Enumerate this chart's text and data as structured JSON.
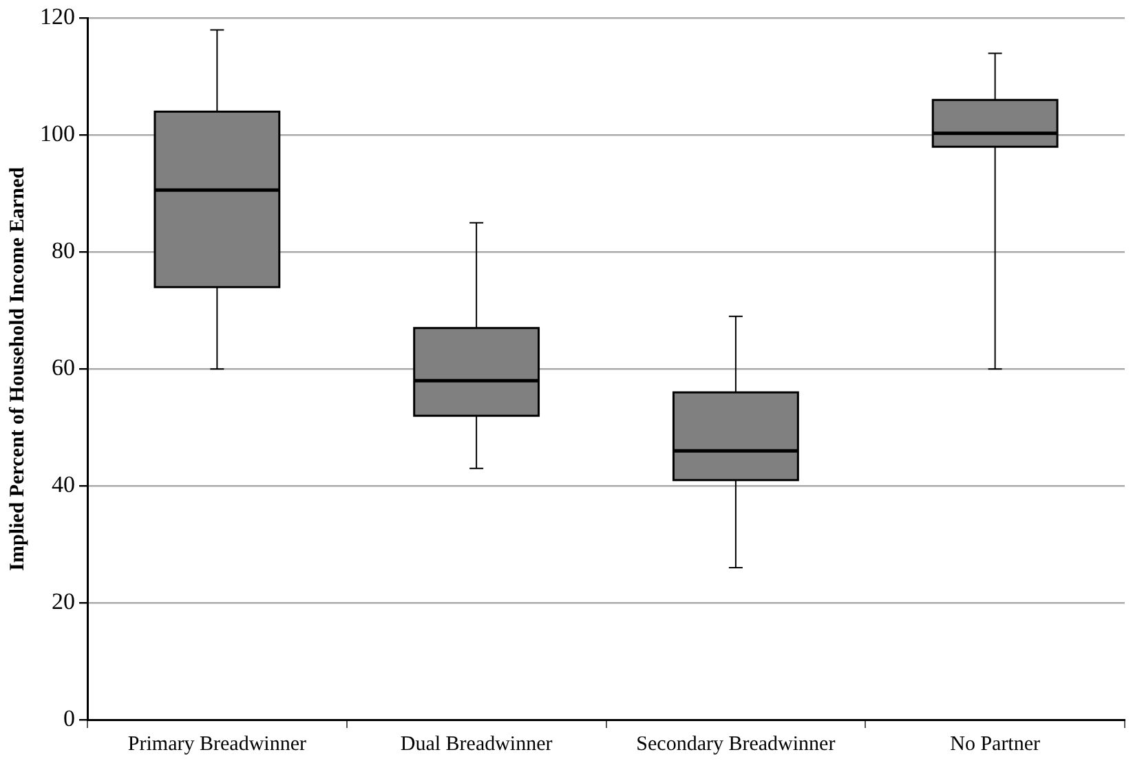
{
  "chart_data": {
    "type": "box",
    "ylabel": "Implied Percent of Household Income Earned",
    "categories": [
      "Primary Breadwinner",
      "Dual Breadwinner",
      "Secondary Breadwinner",
      "No Partner"
    ],
    "boxes": [
      {
        "low": 60,
        "q1": 74,
        "median": 90.6,
        "q3": 104,
        "high": 118
      },
      {
        "low": 43,
        "q1": 52,
        "median": 58,
        "q3": 67,
        "high": 85
      },
      {
        "low": 26,
        "q1": 41,
        "median": 46,
        "q3": 56,
        "high": 69
      },
      {
        "low": 60,
        "q1": 98,
        "median": 100.3,
        "q3": 106,
        "high": 114
      }
    ],
    "color": "#808080",
    "ylim": [
      0,
      120
    ],
    "yticks": [
      0,
      20,
      40,
      60,
      80,
      100,
      120
    ],
    "grid": "y",
    "legend": false
  }
}
